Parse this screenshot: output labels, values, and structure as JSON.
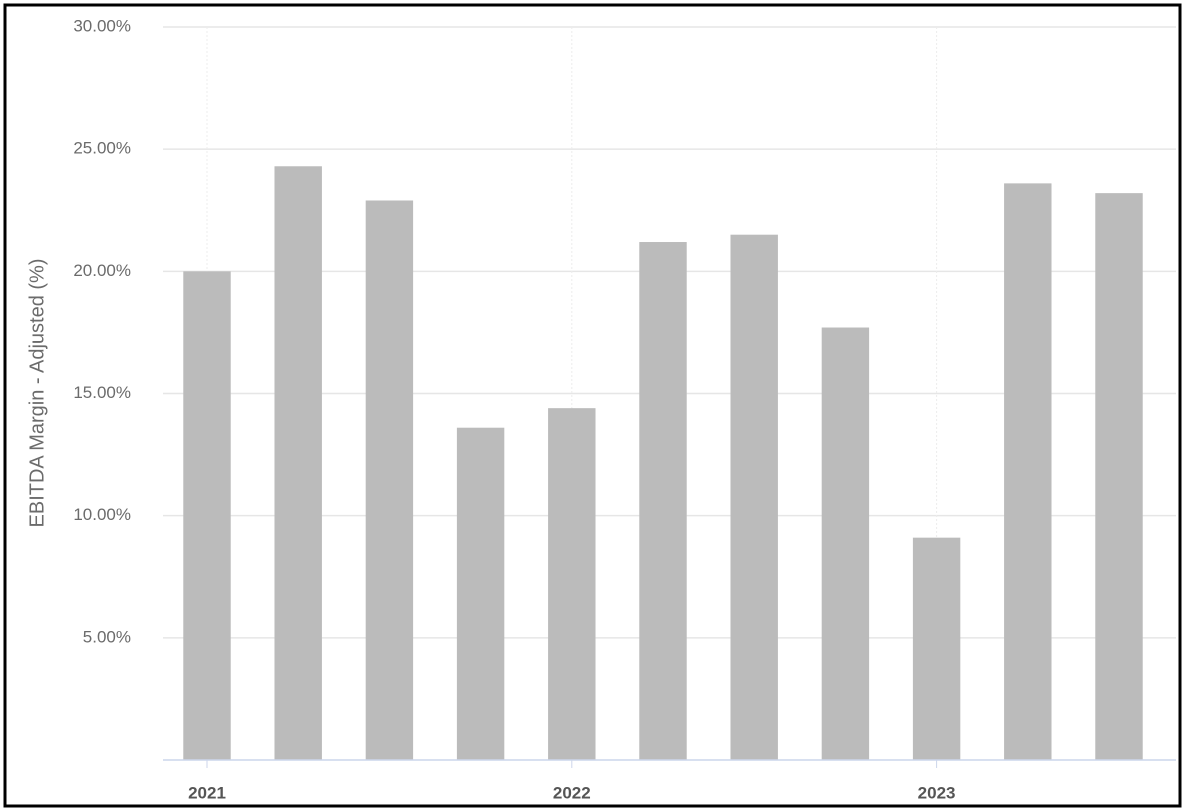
{
  "chart_data": {
    "type": "bar",
    "y_label": "EBITDA Margin - Adjusted (%)",
    "categories": [
      "2021",
      null,
      null,
      null,
      "2022",
      null,
      null,
      null,
      "2023",
      null,
      null
    ],
    "values": [
      20.0,
      24.3,
      22.9,
      13.6,
      14.4,
      21.2,
      21.5,
      17.7,
      9.1,
      23.6,
      23.2
    ],
    "color": "#bbbbbb",
    "ylim": [
      0,
      30
    ],
    "yticks": [
      {
        "value": 5,
        "label": "5.00%"
      },
      {
        "value": 10,
        "label": "10.00%"
      },
      {
        "value": 15,
        "label": "15.00%"
      },
      {
        "value": 20,
        "label": "20.00%"
      },
      {
        "value": 25,
        "label": "25.00%"
      },
      {
        "value": 30,
        "label": "30.00%"
      }
    ],
    "grid": true
  }
}
